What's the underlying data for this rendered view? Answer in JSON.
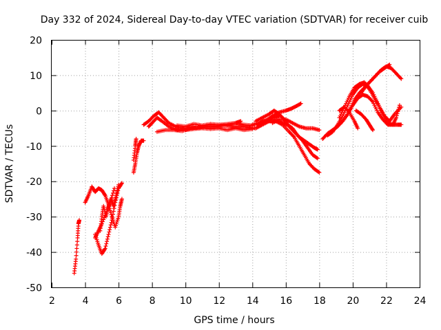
{
  "chart_data": {
    "type": "scatter",
    "title": "Day 332 of 2024, Sidereal Day-to-day VTEC variation (SDTVAR) for receiver cuib",
    "xlabel": "GPS time / hours",
    "ylabel": "SDTVAR / TECUs",
    "xlim": [
      2,
      24
    ],
    "ylim": [
      -50,
      20
    ],
    "xticks": [
      2,
      4,
      6,
      8,
      10,
      12,
      14,
      16,
      18,
      20,
      22,
      24
    ],
    "yticks": [
      -50,
      -40,
      -30,
      -20,
      -10,
      0,
      10,
      20
    ],
    "grid": true,
    "marker": "+",
    "color": "#ff0000",
    "series": [
      {
        "name": "track-1",
        "points": [
          [
            3.35,
            -46
          ],
          [
            3.45,
            -42
          ],
          [
            3.55,
            -36
          ],
          [
            3.6,
            -32
          ],
          [
            3.65,
            -31
          ]
        ]
      },
      {
        "name": "track-2",
        "points": [
          [
            4.0,
            -26
          ],
          [
            4.2,
            -24
          ],
          [
            4.4,
            -21.5
          ],
          [
            4.6,
            -23
          ],
          [
            4.8,
            -22
          ],
          [
            5.0,
            -22.5
          ],
          [
            5.2,
            -24
          ],
          [
            5.4,
            -26.5
          ],
          [
            5.6,
            -30
          ],
          [
            5.8,
            -33
          ],
          [
            6.0,
            -30
          ],
          [
            6.1,
            -27
          ],
          [
            6.2,
            -25
          ]
        ]
      },
      {
        "name": "track-3",
        "points": [
          [
            4.6,
            -35
          ],
          [
            4.8,
            -38
          ],
          [
            5.0,
            -40.5
          ],
          [
            5.2,
            -39
          ],
          [
            5.4,
            -35
          ],
          [
            5.6,
            -31
          ],
          [
            5.8,
            -26
          ],
          [
            6.0,
            -22
          ],
          [
            6.2,
            -20.5
          ]
        ]
      },
      {
        "name": "track-4",
        "points": [
          [
            4.9,
            -34
          ],
          [
            5.0,
            -30
          ],
          [
            5.1,
            -27
          ],
          [
            5.25,
            -30
          ],
          [
            5.4,
            -27
          ],
          [
            5.55,
            -25
          ],
          [
            5.7,
            -27
          ],
          [
            5.85,
            -24
          ],
          [
            6.0,
            -21
          ]
        ]
      },
      {
        "name": "track-5",
        "points": [
          [
            4.6,
            -36
          ],
          [
            4.8,
            -34
          ],
          [
            5.0,
            -32
          ],
          [
            5.3,
            -28.5
          ],
          [
            5.5,
            -26
          ],
          [
            5.75,
            -22
          ]
        ]
      },
      {
        "name": "track-6",
        "points": [
          [
            6.9,
            -17.5
          ],
          [
            7.0,
            -15
          ],
          [
            7.1,
            -12
          ],
          [
            7.2,
            -10
          ],
          [
            7.35,
            -8.5
          ],
          [
            7.5,
            -8.5
          ]
        ]
      },
      {
        "name": "track-7",
        "points": [
          [
            6.9,
            -14
          ],
          [
            7.0,
            -10
          ],
          [
            7.05,
            -8
          ]
        ]
      },
      {
        "name": "track-8",
        "points": [
          [
            7.5,
            -4
          ],
          [
            7.8,
            -3
          ],
          [
            8.1,
            -1.5
          ],
          [
            8.4,
            -0.5
          ],
          [
            8.7,
            -2
          ],
          [
            9.0,
            -3.5
          ],
          [
            9.4,
            -4.5
          ],
          [
            9.8,
            -5
          ],
          [
            10.2,
            -5
          ]
        ]
      },
      {
        "name": "track-9",
        "points": [
          [
            7.8,
            -4.5
          ],
          [
            8.0,
            -3.5
          ],
          [
            8.3,
            -2
          ],
          [
            8.6,
            -3
          ],
          [
            9.0,
            -4.5
          ],
          [
            9.5,
            -5.5
          ],
          [
            10.0,
            -5
          ],
          [
            10.5,
            -4.5
          ]
        ]
      },
      {
        "name": "track-10",
        "points": [
          [
            8.3,
            -6
          ],
          [
            8.8,
            -5.5
          ],
          [
            9.3,
            -5.5
          ],
          [
            9.8,
            -5.8
          ],
          [
            10.3,
            -5
          ],
          [
            10.8,
            -4.8
          ],
          [
            11.3,
            -4.5
          ],
          [
            11.8,
            -4.5
          ],
          [
            12.3,
            -4.2
          ],
          [
            12.8,
            -4.5
          ],
          [
            13.3,
            -4.5
          ],
          [
            13.8,
            -4.8
          ],
          [
            14.2,
            -5
          ]
        ]
      },
      {
        "name": "track-11",
        "points": [
          [
            9.5,
            -4.2
          ],
          [
            10.0,
            -4.5
          ],
          [
            10.5,
            -3.8
          ],
          [
            11.0,
            -4.2
          ],
          [
            11.5,
            -3.8
          ],
          [
            12.0,
            -4
          ],
          [
            12.5,
            -3.8
          ],
          [
            13.0,
            -3.5
          ],
          [
            13.5,
            -4
          ],
          [
            14.0,
            -4.2
          ]
        ]
      },
      {
        "name": "track-12",
        "points": [
          [
            10.0,
            -5.5
          ],
          [
            10.5,
            -5.2
          ],
          [
            11.0,
            -5
          ],
          [
            11.5,
            -5.2
          ],
          [
            12.0,
            -5
          ],
          [
            12.5,
            -5.5
          ],
          [
            13.0,
            -5
          ],
          [
            13.5,
            -5.5
          ],
          [
            14.0,
            -5.2
          ]
        ]
      },
      {
        "name": "track-13",
        "points": [
          [
            12.5,
            -4
          ],
          [
            13.0,
            -3.5
          ],
          [
            13.3,
            -3
          ]
        ]
      },
      {
        "name": "track-14",
        "points": [
          [
            14.3,
            -4
          ],
          [
            14.6,
            -3
          ],
          [
            14.9,
            -3
          ],
          [
            15.2,
            -3
          ],
          [
            15.5,
            -3
          ],
          [
            15.8,
            -3.5
          ],
          [
            16.1,
            -4
          ],
          [
            16.4,
            -5
          ],
          [
            16.7,
            -7
          ],
          [
            17.0,
            -8.5
          ],
          [
            17.3,
            -10.5
          ],
          [
            17.6,
            -12.5
          ],
          [
            17.9,
            -13.5
          ]
        ]
      },
      {
        "name": "track-15",
        "points": [
          [
            14.2,
            -5
          ],
          [
            14.6,
            -4
          ],
          [
            15.0,
            -3
          ],
          [
            15.4,
            -3
          ],
          [
            15.8,
            -4
          ],
          [
            16.2,
            -6
          ],
          [
            16.5,
            -7.5
          ],
          [
            16.8,
            -10
          ],
          [
            17.1,
            -12.5
          ],
          [
            17.4,
            -15
          ],
          [
            17.7,
            -16.5
          ],
          [
            18.0,
            -17.5
          ]
        ]
      },
      {
        "name": "track-16",
        "points": [
          [
            14.2,
            -3
          ],
          [
            14.6,
            -2
          ],
          [
            15.0,
            -1
          ],
          [
            15.3,
            0
          ],
          [
            15.6,
            -1
          ],
          [
            15.9,
            -2.5
          ],
          [
            16.2,
            -4.5
          ],
          [
            16.5,
            -6
          ],
          [
            16.8,
            -7.5
          ],
          [
            17.1,
            -8.5
          ],
          [
            17.4,
            -9.5
          ],
          [
            17.7,
            -10.5
          ],
          [
            17.9,
            -11
          ]
        ]
      },
      {
        "name": "track-17",
        "points": [
          [
            14.4,
            -4.5
          ],
          [
            14.8,
            -3
          ],
          [
            15.2,
            -1.5
          ],
          [
            15.6,
            -0.5
          ],
          [
            16.0,
            0
          ],
          [
            16.3,
            0.5
          ],
          [
            16.6,
            1.2
          ],
          [
            16.9,
            2
          ]
        ]
      },
      {
        "name": "track-18",
        "points": [
          [
            15.2,
            -3.5
          ],
          [
            15.6,
            -2.5
          ],
          [
            16.0,
            -2.5
          ],
          [
            16.4,
            -3.5
          ],
          [
            16.8,
            -4.5
          ],
          [
            17.2,
            -5
          ],
          [
            17.6,
            -5
          ],
          [
            18.0,
            -5.5
          ]
        ]
      },
      {
        "name": "track-19",
        "points": [
          [
            14.0,
            -4
          ],
          [
            14.4,
            -3.5
          ],
          [
            14.9,
            -2.5
          ],
          [
            15.3,
            -2
          ],
          [
            15.6,
            -1.5
          ]
        ]
      },
      {
        "name": "track-20",
        "points": [
          [
            18.2,
            -8
          ],
          [
            18.5,
            -6.5
          ],
          [
            18.8,
            -5.5
          ],
          [
            19.1,
            -4.5
          ],
          [
            19.4,
            -3
          ],
          [
            19.7,
            -1
          ],
          [
            20.0,
            1.5
          ],
          [
            20.3,
            3.5
          ],
          [
            20.6,
            4.5
          ],
          [
            20.9,
            4
          ],
          [
            21.2,
            2.5
          ],
          [
            21.5,
            -0.5
          ],
          [
            21.8,
            -2.5
          ],
          [
            22.1,
            -4
          ],
          [
            22.4,
            -4
          ],
          [
            22.7,
            -4
          ],
          [
            22.9,
            -4
          ]
        ]
      },
      {
        "name": "track-21",
        "points": [
          [
            18.5,
            -7
          ],
          [
            18.8,
            -6
          ],
          [
            19.1,
            -4
          ],
          [
            19.4,
            -1.5
          ],
          [
            19.7,
            1.5
          ],
          [
            20.0,
            4.5
          ],
          [
            20.3,
            6.5
          ],
          [
            20.6,
            7.5
          ],
          [
            20.9,
            7
          ],
          [
            21.2,
            5
          ],
          [
            21.5,
            2
          ],
          [
            21.8,
            -1
          ],
          [
            22.1,
            -3.5
          ],
          [
            22.4,
            -4
          ],
          [
            22.6,
            -2
          ],
          [
            22.8,
            1.5
          ]
        ]
      },
      {
        "name": "track-22",
        "points": [
          [
            19.2,
            -2
          ],
          [
            19.5,
            1
          ],
          [
            19.8,
            4
          ],
          [
            20.1,
            6.5
          ],
          [
            20.4,
            7.5
          ],
          [
            20.7,
            8
          ],
          [
            21.0,
            6
          ],
          [
            21.3,
            3.5
          ],
          [
            21.6,
            1
          ],
          [
            21.9,
            -1.5
          ],
          [
            22.2,
            -3
          ],
          [
            22.5,
            -1
          ],
          [
            22.9,
            1
          ]
        ]
      },
      {
        "name": "track-23",
        "points": [
          [
            19.8,
            0
          ],
          [
            20.1,
            3
          ],
          [
            20.4,
            5
          ],
          [
            20.7,
            6.5
          ],
          [
            21.0,
            8
          ],
          [
            21.3,
            9.5
          ],
          [
            21.6,
            11
          ],
          [
            21.9,
            12
          ],
          [
            22.2,
            13
          ]
        ]
      },
      {
        "name": "track-24",
        "points": [
          [
            20.5,
            5
          ],
          [
            20.8,
            7
          ],
          [
            21.1,
            8.5
          ],
          [
            21.4,
            10
          ],
          [
            21.7,
            11.5
          ],
          [
            22.0,
            12.5
          ],
          [
            22.3,
            12
          ],
          [
            22.6,
            10.5
          ],
          [
            22.9,
            9
          ]
        ]
      },
      {
        "name": "track-25",
        "points": [
          [
            19.2,
            0
          ],
          [
            19.5,
            1
          ],
          [
            19.8,
            -0.5
          ],
          [
            20.1,
            -3
          ],
          [
            20.3,
            -5
          ]
        ]
      },
      {
        "name": "track-26",
        "points": [
          [
            20.2,
            0
          ],
          [
            20.5,
            -1
          ],
          [
            20.8,
            -2.5
          ],
          [
            21.0,
            -4
          ],
          [
            21.2,
            -5.5
          ]
        ]
      }
    ]
  }
}
